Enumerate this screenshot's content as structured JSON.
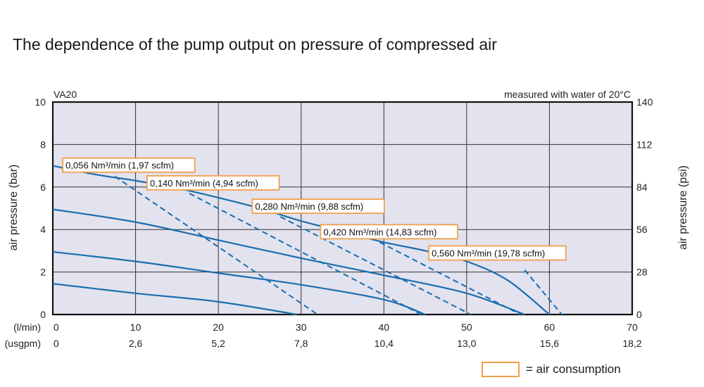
{
  "title": "The dependence of the pump output on pressure of compressed air",
  "chart_data": {
    "type": "line",
    "model": "VA20",
    "note": "measured with water of 20°C",
    "xlabel_units": [
      "(l/min)",
      "(usgpm)"
    ],
    "x_ticks": [
      0,
      10,
      20,
      30,
      40,
      50,
      60,
      70
    ],
    "x_ticks_usgpm": [
      "0",
      "2,6",
      "5,2",
      "7,8",
      "10,4",
      "13,0",
      "15,6",
      "18,2"
    ],
    "xlim": [
      0,
      70
    ],
    "ylabel_left": "air pressure (bar)",
    "ylabel_right": "air pressure (psi)",
    "y_ticks": [
      0,
      2,
      4,
      6,
      8,
      10
    ],
    "y_ticks_psi": [
      0,
      28,
      56,
      84,
      112,
      140
    ],
    "ylim": [
      0,
      10
    ],
    "grid": true,
    "colors": {
      "plot_bg": "#e3e2ef",
      "line": "#1a6eae",
      "callout": "#f0a04b",
      "grid": "#333333"
    },
    "pressure_curves": [
      {
        "points": [
          [
            0,
            7.0
          ],
          [
            5,
            6.6
          ],
          [
            10,
            6.3
          ],
          [
            15,
            5.95
          ],
          [
            20,
            5.5
          ],
          [
            25,
            5.0
          ],
          [
            30,
            4.4
          ],
          [
            35,
            3.9
          ],
          [
            40,
            3.4
          ],
          [
            45,
            3.0
          ],
          [
            50,
            2.5
          ],
          [
            55,
            1.6
          ],
          [
            60,
            0.0
          ]
        ]
      },
      {
        "points": [
          [
            0,
            4.95
          ],
          [
            10,
            4.35
          ],
          [
            20,
            3.5
          ],
          [
            30,
            2.65
          ],
          [
            40,
            1.85
          ],
          [
            50,
            1.0
          ],
          [
            57,
            0.0
          ]
        ]
      },
      {
        "points": [
          [
            0,
            2.95
          ],
          [
            10,
            2.5
          ],
          [
            20,
            1.95
          ],
          [
            30,
            1.4
          ],
          [
            40,
            0.7
          ],
          [
            45,
            0.0
          ]
        ]
      },
      {
        "points": [
          [
            0,
            1.45
          ],
          [
            10,
            1.0
          ],
          [
            20,
            0.6
          ],
          [
            29.5,
            0.0
          ]
        ]
      }
    ],
    "air_consumption_lines": [
      {
        "label": "0,056 Nm³/min (1,97 scfm)",
        "points": [
          [
            7.5,
            6.5
          ],
          [
            32,
            0.0
          ]
        ]
      },
      {
        "label": "0,140 Nm³/min (4,94 scfm)",
        "points": [
          [
            16.5,
            5.7
          ],
          [
            44.5,
            0.0
          ]
        ]
      },
      {
        "label": "0,280 Nm³/min (9,88 scfm)",
        "points": [
          [
            27.5,
            4.6
          ],
          [
            50.5,
            0.0
          ]
        ]
      },
      {
        "label": "0,420 Nm³/min (14,83 scfm)",
        "points": [
          [
            39.5,
            3.4
          ],
          [
            56.5,
            0.0
          ]
        ]
      },
      {
        "label": "0,560 Nm³/min (19,78 scfm)",
        "points": [
          [
            57,
            2.1
          ],
          [
            61.5,
            0.0
          ]
        ]
      }
    ]
  },
  "legend": {
    "label": "= air consumption"
  }
}
